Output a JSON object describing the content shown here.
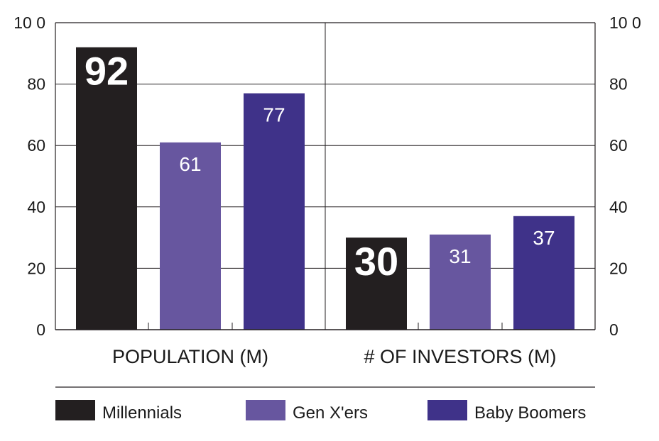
{
  "chart_data": {
    "type": "bar",
    "categories": [
      "POPULATION   (M)",
      "# OF INVESTORS (M)"
    ],
    "series": [
      {
        "name": "Millennials",
        "values": [
          92,
          30
        ],
        "color": "#231f20",
        "label_style": "bold"
      },
      {
        "name": "Gen X'ers",
        "values": [
          61,
          31
        ],
        "color": "#67569f",
        "label_style": "normal"
      },
      {
        "name": "Baby Boomers",
        "values": [
          77,
          37
        ],
        "color": "#3f3289",
        "label_style": "normal"
      }
    ],
    "ylim": [
      0,
      100
    ],
    "yticks": [
      "0",
      "20",
      "40",
      "60",
      "80",
      "10 0"
    ],
    "ytick_values": [
      0,
      20,
      40,
      60,
      80,
      100
    ],
    "grid": true,
    "legend_position": "bottom",
    "title": "",
    "xlabel": "",
    "ylabel": ""
  }
}
